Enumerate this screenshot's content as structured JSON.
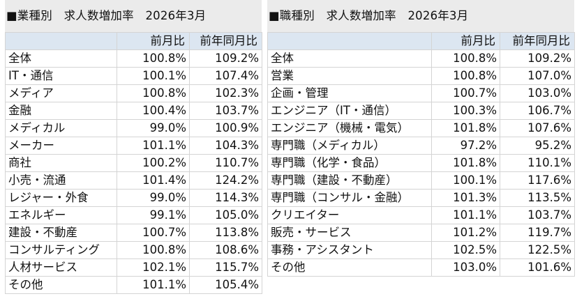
{
  "industry": {
    "title": "■業種別　求人数増加率　2026年3月",
    "headers": [
      "",
      "前月比",
      "前年同月比"
    ],
    "rows": [
      {
        "name": "全体",
        "mom": "100.8%",
        "yoy": "109.2%"
      },
      {
        "name": "IT・通信",
        "mom": "100.1%",
        "yoy": "107.4%"
      },
      {
        "name": "メディア",
        "mom": "100.8%",
        "yoy": "102.3%"
      },
      {
        "name": "金融",
        "mom": "100.4%",
        "yoy": "103.7%"
      },
      {
        "name": "メディカル",
        "mom": "99.0%",
        "yoy": "100.9%"
      },
      {
        "name": "メーカー",
        "mom": "101.1%",
        "yoy": "104.3%"
      },
      {
        "name": "商社",
        "mom": "100.2%",
        "yoy": "110.7%"
      },
      {
        "name": "小売・流通",
        "mom": "101.4%",
        "yoy": "124.2%"
      },
      {
        "name": "レジャー・外食",
        "mom": "99.0%",
        "yoy": "114.3%"
      },
      {
        "name": "エネルギー",
        "mom": "99.1%",
        "yoy": "105.0%"
      },
      {
        "name": "建設・不動産",
        "mom": "100.7%",
        "yoy": "113.8%"
      },
      {
        "name": "コンサルティング",
        "mom": "100.8%",
        "yoy": "108.6%"
      },
      {
        "name": "人材サービス",
        "mom": "102.1%",
        "yoy": "115.7%"
      },
      {
        "name": "その他",
        "mom": "101.1%",
        "yoy": "105.4%"
      }
    ]
  },
  "occupation": {
    "title": "■職種別　求人数増加率　2026年3月",
    "headers": [
      "",
      "前月比",
      "前年同月比"
    ],
    "rows": [
      {
        "name": "全体",
        "mom": "100.8%",
        "yoy": "109.2%"
      },
      {
        "name": "営業",
        "mom": "100.8%",
        "yoy": "107.0%"
      },
      {
        "name": "企画・管理",
        "mom": "100.7%",
        "yoy": "103.0%"
      },
      {
        "name": "エンジニア（IT・通信）",
        "mom": "100.3%",
        "yoy": "106.7%"
      },
      {
        "name": "エンジニア（機械・電気）",
        "mom": "101.8%",
        "yoy": "107.6%"
      },
      {
        "name": "専門職（メディカル）",
        "mom": "97.2%",
        "yoy": "95.2%"
      },
      {
        "name": "専門職（化学・食品）",
        "mom": "101.8%",
        "yoy": "110.1%"
      },
      {
        "name": "専門職（建設・不動産）",
        "mom": "100.1%",
        "yoy": "117.6%"
      },
      {
        "name": "専門職（コンサル・金融）",
        "mom": "101.3%",
        "yoy": "113.5%"
      },
      {
        "name": "クリエイター",
        "mom": "101.1%",
        "yoy": "103.7%"
      },
      {
        "name": "販売・サービス",
        "mom": "101.2%",
        "yoy": "119.7%"
      },
      {
        "name": "事務・アシスタント",
        "mom": "102.5%",
        "yoy": "122.5%"
      },
      {
        "name": "その他",
        "mom": "103.0%",
        "yoy": "101.6%"
      }
    ]
  }
}
